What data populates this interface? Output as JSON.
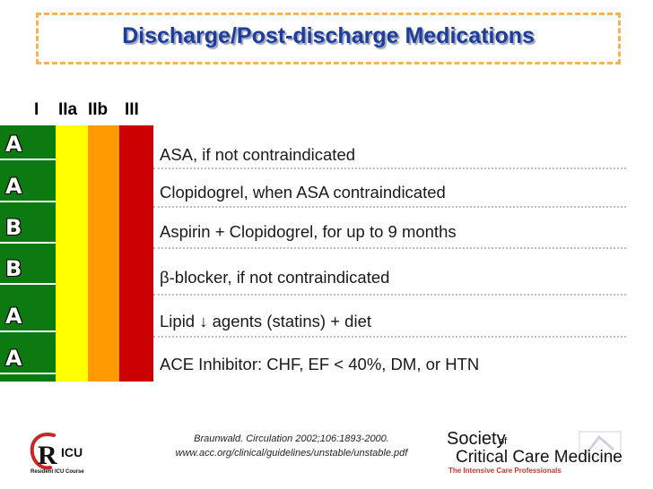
{
  "title": "Discharge/Post-discharge Medications",
  "class_headers": [
    "I",
    "IIa",
    "IIb",
    "III"
  ],
  "colors": {
    "class_I": "#0c7a10",
    "class_IIa": "#ffff00",
    "class_IIb": "#ff9a00",
    "class_III": "#cc0000",
    "title": "#1f3c9a"
  },
  "recommendations": [
    {
      "grade": "A",
      "text": "ASA, if not contraindicated"
    },
    {
      "grade": "A",
      "text": "Clopidogrel, when ASA contraindicated"
    },
    {
      "grade": "B",
      "text": "Aspirin + Clopidogrel, for up to 9 months"
    },
    {
      "grade": "B",
      "text": "β-blocker, if not contraindicated"
    },
    {
      "grade": "A",
      "text": "Lipid ↓ agents (statins) + diet"
    },
    {
      "grade": "A",
      "text": "ACE Inhibitor: CHF, EF < 40%, DM, or HTN"
    }
  ],
  "citation": {
    "line1": "Braunwald. Circulation 2002;106:1893-2000.",
    "line2": "www.acc.org/clinical/guidelines/unstable/unstable.pdf"
  },
  "logos": {
    "ricu": {
      "mark": "R",
      "mark2": "ICU",
      "caption": "Resident ICU Course"
    },
    "sccm": {
      "line1": "Society",
      "of": "of",
      "line2": "Critical Care Medicine",
      "tagline": "The Intensive Care Professionals"
    }
  }
}
